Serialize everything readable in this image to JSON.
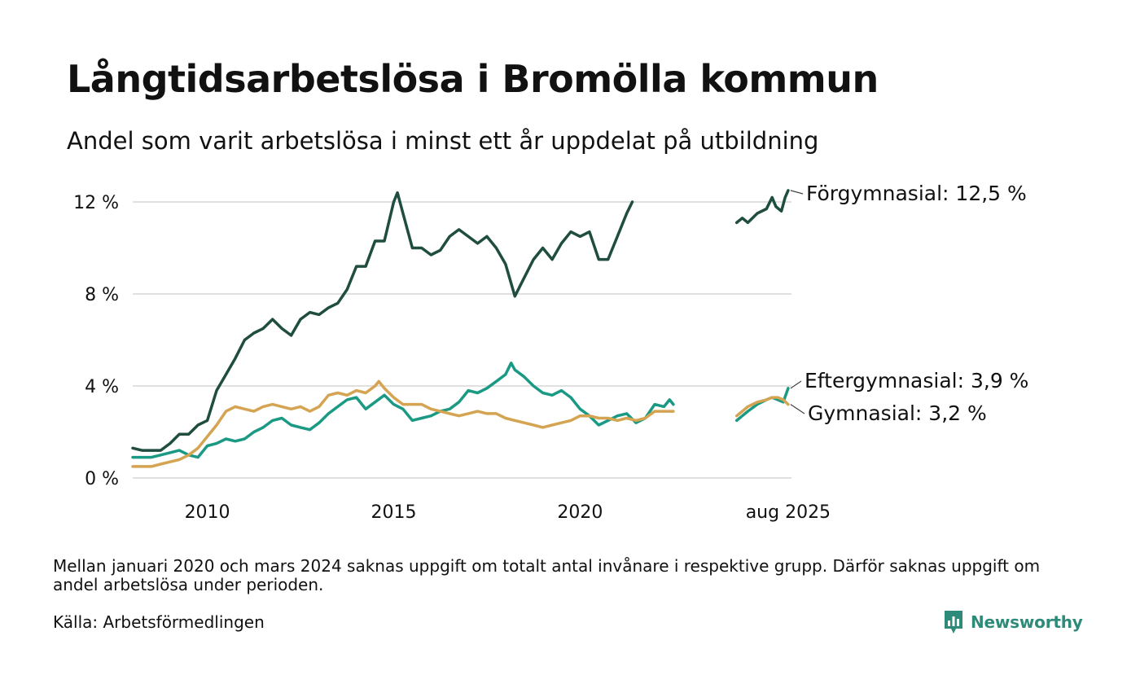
{
  "title": "Långtidsarbetslösa i Bromölla kommun",
  "subtitle": "Andel som varit arbetslösa i minst ett år uppdelat på utbildning",
  "note": "Mellan januari 2020 och mars 2024 saknas uppgift om totalt antal invånare i respektive grupp. Därför saknas uppgift om andel arbetslösa under perioden.",
  "source": "Källa: Arbetsförmedlingen",
  "brand": "Newsworthy",
  "colors": {
    "forgymnasial": "#1f4d40",
    "eftergymnasial": "#1a9a84",
    "gymnasial": "#d4a452",
    "grid": "#e0e0e0",
    "brand": "#2e8b7a"
  },
  "chart_data": {
    "type": "line",
    "title": "Långtidsarbetslösa i Bromölla kommun",
    "subtitle": "Andel som varit arbetslösa i minst ett år uppdelat på utbildning",
    "xlabel": "",
    "ylabel": "",
    "x_range": [
      2008.0,
      2025.67
    ],
    "ylim": [
      0,
      13
    ],
    "y_ticks": [
      0,
      4,
      8,
      12
    ],
    "y_tick_labels": [
      "0 %",
      "4 %",
      "8 %",
      "12 %"
    ],
    "x_ticks": [
      2010,
      2015,
      2020,
      2025.58
    ],
    "x_tick_labels": [
      "2010",
      "2015",
      "2020",
      "aug 2025"
    ],
    "grid": true,
    "legend": "end-of-line labels",
    "series": [
      {
        "name": "Förgymnasial",
        "end_label": "Förgymnasial: 12,5 %",
        "color": "#1f4d40",
        "segments": [
          [
            [
              2008.0,
              1.3
            ],
            [
              2008.25,
              1.2
            ],
            [
              2008.5,
              1.2
            ],
            [
              2008.75,
              1.2
            ],
            [
              2009.0,
              1.5
            ],
            [
              2009.25,
              1.9
            ],
            [
              2009.5,
              1.9
            ],
            [
              2009.75,
              2.3
            ],
            [
              2010.0,
              2.5
            ],
            [
              2010.25,
              3.8
            ],
            [
              2010.5,
              4.5
            ],
            [
              2010.75,
              5.2
            ],
            [
              2011.0,
              6.0
            ],
            [
              2011.25,
              6.3
            ],
            [
              2011.5,
              6.5
            ],
            [
              2011.75,
              6.9
            ],
            [
              2012.0,
              6.5
            ],
            [
              2012.25,
              6.2
            ],
            [
              2012.5,
              6.9
            ],
            [
              2012.75,
              7.2
            ],
            [
              2013.0,
              7.1
            ],
            [
              2013.25,
              7.4
            ],
            [
              2013.5,
              7.6
            ],
            [
              2013.75,
              8.2
            ],
            [
              2014.0,
              9.2
            ],
            [
              2014.25,
              9.2
            ],
            [
              2014.5,
              10.3
            ],
            [
              2014.75,
              10.3
            ],
            [
              2015.0,
              12.0
            ],
            [
              2015.1,
              12.4
            ],
            [
              2015.25,
              11.5
            ],
            [
              2015.5,
              10.0
            ],
            [
              2015.75,
              10.0
            ],
            [
              2016.0,
              9.7
            ],
            [
              2016.25,
              9.9
            ],
            [
              2016.5,
              10.5
            ],
            [
              2016.75,
              10.8
            ],
            [
              2017.0,
              10.5
            ],
            [
              2017.25,
              10.2
            ],
            [
              2017.5,
              10.5
            ],
            [
              2017.75,
              10.0
            ],
            [
              2018.0,
              9.3
            ],
            [
              2018.25,
              7.9
            ],
            [
              2018.5,
              8.7
            ],
            [
              2018.75,
              9.5
            ],
            [
              2019.0,
              10.0
            ],
            [
              2019.25,
              9.5
            ],
            [
              2019.5,
              10.2
            ],
            [
              2019.75,
              10.7
            ],
            [
              2020.0,
              10.5
            ],
            [
              2020.25,
              10.7
            ],
            [
              2020.5,
              9.5
            ],
            [
              2020.75,
              9.5
            ],
            [
              2021.0,
              10.5
            ],
            [
              2021.25,
              11.5
            ],
            [
              2021.4,
              12.0
            ]
          ],
          [
            [
              2024.2,
              11.1
            ],
            [
              2024.35,
              11.3
            ],
            [
              2024.5,
              11.1
            ],
            [
              2024.75,
              11.5
            ],
            [
              2025.0,
              11.7
            ],
            [
              2025.15,
              12.2
            ],
            [
              2025.25,
              11.8
            ],
            [
              2025.4,
              11.6
            ],
            [
              2025.5,
              12.2
            ],
            [
              2025.58,
              12.5
            ]
          ]
        ]
      },
      {
        "name": "Eftergymnasial",
        "end_label": "Eftergymnasial:  3,9 %",
        "color": "#1a9a84",
        "segments": [
          [
            [
              2008.0,
              0.9
            ],
            [
              2008.25,
              0.9
            ],
            [
              2008.5,
              0.9
            ],
            [
              2008.75,
              1.0
            ],
            [
              2009.0,
              1.1
            ],
            [
              2009.25,
              1.2
            ],
            [
              2009.5,
              1.0
            ],
            [
              2009.75,
              0.9
            ],
            [
              2010.0,
              1.4
            ],
            [
              2010.25,
              1.5
            ],
            [
              2010.5,
              1.7
            ],
            [
              2010.75,
              1.6
            ],
            [
              2011.0,
              1.7
            ],
            [
              2011.25,
              2.0
            ],
            [
              2011.5,
              2.2
            ],
            [
              2011.75,
              2.5
            ],
            [
              2012.0,
              2.6
            ],
            [
              2012.25,
              2.3
            ],
            [
              2012.5,
              2.2
            ],
            [
              2012.75,
              2.1
            ],
            [
              2013.0,
              2.4
            ],
            [
              2013.25,
              2.8
            ],
            [
              2013.5,
              3.1
            ],
            [
              2013.75,
              3.4
            ],
            [
              2014.0,
              3.5
            ],
            [
              2014.25,
              3.0
            ],
            [
              2014.5,
              3.3
            ],
            [
              2014.75,
              3.6
            ],
            [
              2015.0,
              3.2
            ],
            [
              2015.25,
              3.0
            ],
            [
              2015.5,
              2.5
            ],
            [
              2015.75,
              2.6
            ],
            [
              2016.0,
              2.7
            ],
            [
              2016.25,
              2.9
            ],
            [
              2016.5,
              3.0
            ],
            [
              2016.75,
              3.3
            ],
            [
              2017.0,
              3.8
            ],
            [
              2017.25,
              3.7
            ],
            [
              2017.5,
              3.9
            ],
            [
              2017.75,
              4.2
            ],
            [
              2018.0,
              4.5
            ],
            [
              2018.15,
              5.0
            ],
            [
              2018.25,
              4.7
            ],
            [
              2018.5,
              4.4
            ],
            [
              2018.75,
              4.0
            ],
            [
              2019.0,
              3.7
            ],
            [
              2019.25,
              3.6
            ],
            [
              2019.5,
              3.8
            ],
            [
              2019.75,
              3.5
            ],
            [
              2020.0,
              3.0
            ],
            [
              2020.25,
              2.7
            ],
            [
              2020.5,
              2.3
            ],
            [
              2020.75,
              2.5
            ],
            [
              2021.0,
              2.7
            ],
            [
              2021.25,
              2.8
            ],
            [
              2021.5,
              2.4
            ],
            [
              2021.75,
              2.6
            ],
            [
              2022.0,
              3.2
            ],
            [
              2022.25,
              3.1
            ],
            [
              2022.4,
              3.4
            ],
            [
              2022.5,
              3.2
            ]
          ],
          [
            [
              2024.2,
              2.5
            ],
            [
              2024.35,
              2.7
            ],
            [
              2024.5,
              2.9
            ],
            [
              2024.75,
              3.2
            ],
            [
              2025.0,
              3.4
            ],
            [
              2025.15,
              3.5
            ],
            [
              2025.3,
              3.4
            ],
            [
              2025.45,
              3.3
            ],
            [
              2025.58,
              3.9
            ]
          ]
        ]
      },
      {
        "name": "Gymnasial",
        "end_label": "Gymnasial:  3,2 %",
        "color": "#d4a452",
        "segments": [
          [
            [
              2008.0,
              0.5
            ],
            [
              2008.25,
              0.5
            ],
            [
              2008.5,
              0.5
            ],
            [
              2008.75,
              0.6
            ],
            [
              2009.0,
              0.7
            ],
            [
              2009.25,
              0.8
            ],
            [
              2009.5,
              1.0
            ],
            [
              2009.75,
              1.3
            ],
            [
              2010.0,
              1.8
            ],
            [
              2010.25,
              2.3
            ],
            [
              2010.5,
              2.9
            ],
            [
              2010.75,
              3.1
            ],
            [
              2011.0,
              3.0
            ],
            [
              2011.25,
              2.9
            ],
            [
              2011.5,
              3.1
            ],
            [
              2011.75,
              3.2
            ],
            [
              2012.0,
              3.1
            ],
            [
              2012.25,
              3.0
            ],
            [
              2012.5,
              3.1
            ],
            [
              2012.75,
              2.9
            ],
            [
              2013.0,
              3.1
            ],
            [
              2013.25,
              3.6
            ],
            [
              2013.5,
              3.7
            ],
            [
              2013.75,
              3.6
            ],
            [
              2014.0,
              3.8
            ],
            [
              2014.25,
              3.7
            ],
            [
              2014.5,
              4.0
            ],
            [
              2014.6,
              4.2
            ],
            [
              2014.75,
              3.9
            ],
            [
              2015.0,
              3.5
            ],
            [
              2015.25,
              3.2
            ],
            [
              2015.5,
              3.2
            ],
            [
              2015.75,
              3.2
            ],
            [
              2016.0,
              3.0
            ],
            [
              2016.25,
              2.9
            ],
            [
              2016.5,
              2.8
            ],
            [
              2016.75,
              2.7
            ],
            [
              2017.0,
              2.8
            ],
            [
              2017.25,
              2.9
            ],
            [
              2017.5,
              2.8
            ],
            [
              2017.75,
              2.8
            ],
            [
              2018.0,
              2.6
            ],
            [
              2018.25,
              2.5
            ],
            [
              2018.5,
              2.4
            ],
            [
              2018.75,
              2.3
            ],
            [
              2019.0,
              2.2
            ],
            [
              2019.25,
              2.3
            ],
            [
              2019.5,
              2.4
            ],
            [
              2019.75,
              2.5
            ],
            [
              2020.0,
              2.7
            ],
            [
              2020.25,
              2.7
            ],
            [
              2020.5,
              2.6
            ],
            [
              2020.75,
              2.6
            ],
            [
              2021.0,
              2.5
            ],
            [
              2021.25,
              2.6
            ],
            [
              2021.5,
              2.5
            ],
            [
              2021.75,
              2.6
            ],
            [
              2022.0,
              2.9
            ],
            [
              2022.25,
              2.9
            ],
            [
              2022.5,
              2.9
            ]
          ],
          [
            [
              2024.2,
              2.7
            ],
            [
              2024.35,
              2.9
            ],
            [
              2024.5,
              3.1
            ],
            [
              2024.75,
              3.3
            ],
            [
              2025.0,
              3.4
            ],
            [
              2025.15,
              3.5
            ],
            [
              2025.3,
              3.5
            ],
            [
              2025.45,
              3.4
            ],
            [
              2025.58,
              3.2
            ]
          ]
        ]
      }
    ]
  }
}
